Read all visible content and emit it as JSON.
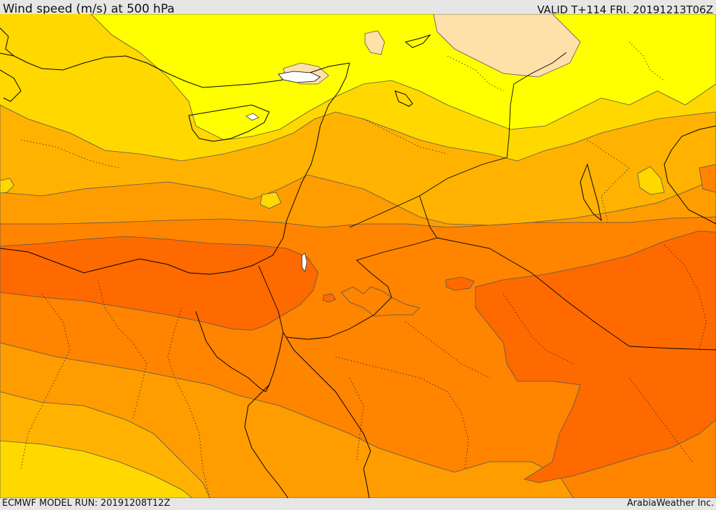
{
  "header": {
    "title": "Wind speed (m/s) at 500 hPa",
    "valid": "VALID T+114 FRI. 20191213T06Z"
  },
  "footer": {
    "model_run": "ECMWF MODEL RUN: 20191208T12Z",
    "credit": "ArabiaWeather Inc."
  },
  "map": {
    "variable": "wind speed",
    "level": "500 hPa",
    "units": "m/s",
    "palette": [
      "#ffe0a8",
      "#ffff00",
      "#ffd800",
      "#ffb300",
      "#ff9d00",
      "#ff8400",
      "#ff6a00"
    ],
    "contour_color": "#555555",
    "coastline_color": "#000000",
    "border_style": "dotted"
  }
}
